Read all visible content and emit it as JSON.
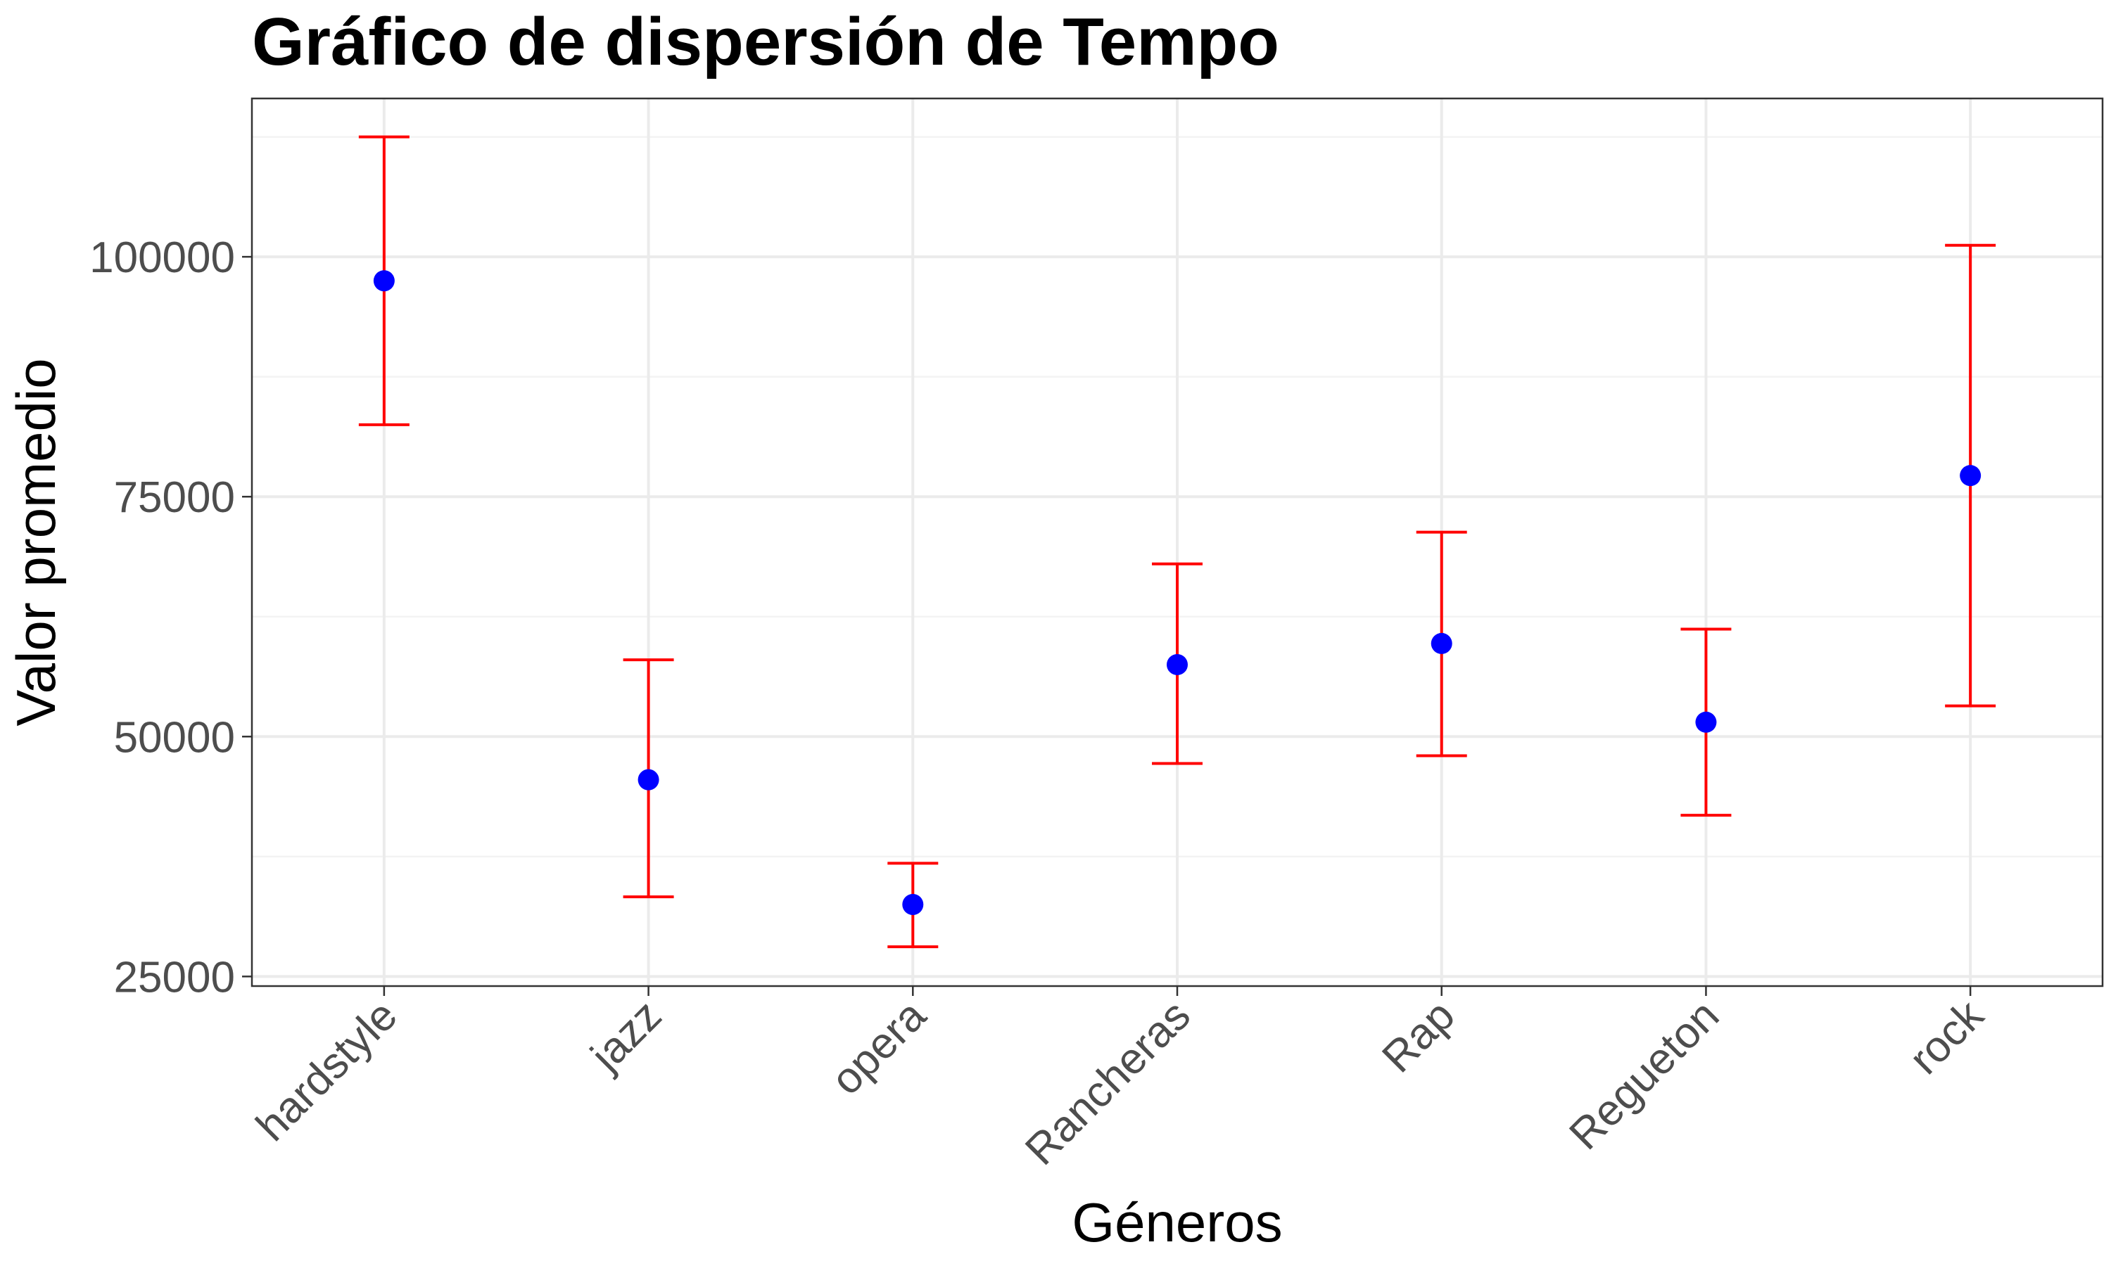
{
  "chart_data": {
    "type": "scatter",
    "title": "Gráfico de dispersión de Tempo",
    "xlabel": "Géneros",
    "ylabel": "Valor promedio",
    "categories": [
      "hardstyle",
      "jazz",
      "opera",
      "Rancheras",
      "Rap",
      "Regueton",
      "rock"
    ],
    "series": [
      {
        "values": [
          97500,
          45500,
          32500,
          57500,
          59700,
          51500,
          77200
        ],
        "error_lower": [
          82500,
          33300,
          28100,
          47200,
          48000,
          41800,
          53200
        ],
        "error_upper": [
          112500,
          58000,
          36800,
          68000,
          71300,
          61200,
          101200
        ]
      }
    ],
    "yticks": [
      25000,
      50000,
      75000,
      100000
    ],
    "ytick_labels": [
      "25000",
      "50000",
      "75000",
      "100000"
    ],
    "ylim": [
      24000,
      116500
    ],
    "grid": true,
    "colors": {
      "point": "#0000ff",
      "errorbar": "#ff0000",
      "grid": "#ebebeb",
      "border": "#333333"
    }
  }
}
